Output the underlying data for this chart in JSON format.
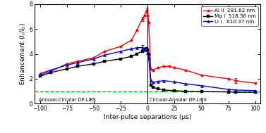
{
  "title": "",
  "xlabel": "Inter-pulse separations (μs)",
  "xlim": [
    -105,
    105
  ],
  "ylim": [
    0,
    8
  ],
  "yticks": [
    0,
    2,
    4,
    6,
    8
  ],
  "xticks": [
    -100,
    -75,
    -50,
    -25,
    0,
    25,
    50,
    75,
    100
  ],
  "dashed_line_y": 1.0,
  "label_annular_circular": "Annular-Circular DP-LIBS",
  "label_circular_annular": "Circular-Annular DP-LIBS",
  "al_label": "Al II  281.62 nm",
  "mg_label": "Mg I  518.36 nm",
  "li_label": "Li I   610.37 nm",
  "al_color": "#ff0000",
  "mg_color": "#000000",
  "li_color": "#0000cc",
  "green_color": "#00aa00",
  "al_x": [
    -100,
    -90,
    -75,
    -65,
    -50,
    -40,
    -25,
    -15,
    -10,
    -5,
    -3,
    -1,
    0,
    1,
    3,
    5,
    10,
    15,
    20,
    25,
    35,
    50,
    75,
    82,
    100
  ],
  "al_y": [
    2.3,
    2.6,
    3.2,
    3.4,
    3.7,
    4.2,
    4.6,
    5.1,
    5.9,
    6.8,
    7.1,
    7.5,
    7.1,
    6.5,
    2.8,
    2.7,
    2.9,
    3.0,
    3.0,
    2.9,
    2.7,
    2.3,
    2.0,
    1.85,
    1.65
  ],
  "mg_x": [
    -100,
    -90,
    -75,
    -65,
    -50,
    -40,
    -25,
    -15,
    -10,
    -5,
    -3,
    -1,
    0,
    1,
    3,
    5,
    10,
    15,
    25,
    35,
    50,
    75,
    82,
    100
  ],
  "mg_y": [
    2.2,
    2.5,
    2.8,
    3.0,
    3.2,
    3.4,
    3.6,
    3.8,
    4.0,
    4.2,
    4.35,
    4.4,
    4.3,
    4.0,
    1.5,
    1.3,
    1.2,
    1.1,
    1.05,
    1.0,
    0.98,
    0.95,
    0.92,
    0.92
  ],
  "li_x": [
    -100,
    -90,
    -75,
    -65,
    -50,
    -40,
    -25,
    -15,
    -10,
    -5,
    -3,
    -1,
    0,
    1,
    3,
    5,
    10,
    15,
    25,
    35,
    50,
    75,
    82,
    100
  ],
  "li_y": [
    2.4,
    2.7,
    3.1,
    3.3,
    3.6,
    3.9,
    4.2,
    4.4,
    4.5,
    4.5,
    4.45,
    4.4,
    4.1,
    3.7,
    1.9,
    1.7,
    1.8,
    1.85,
    1.75,
    1.6,
    1.45,
    1.15,
    1.1,
    1.05
  ],
  "background_color": "#ffffff"
}
